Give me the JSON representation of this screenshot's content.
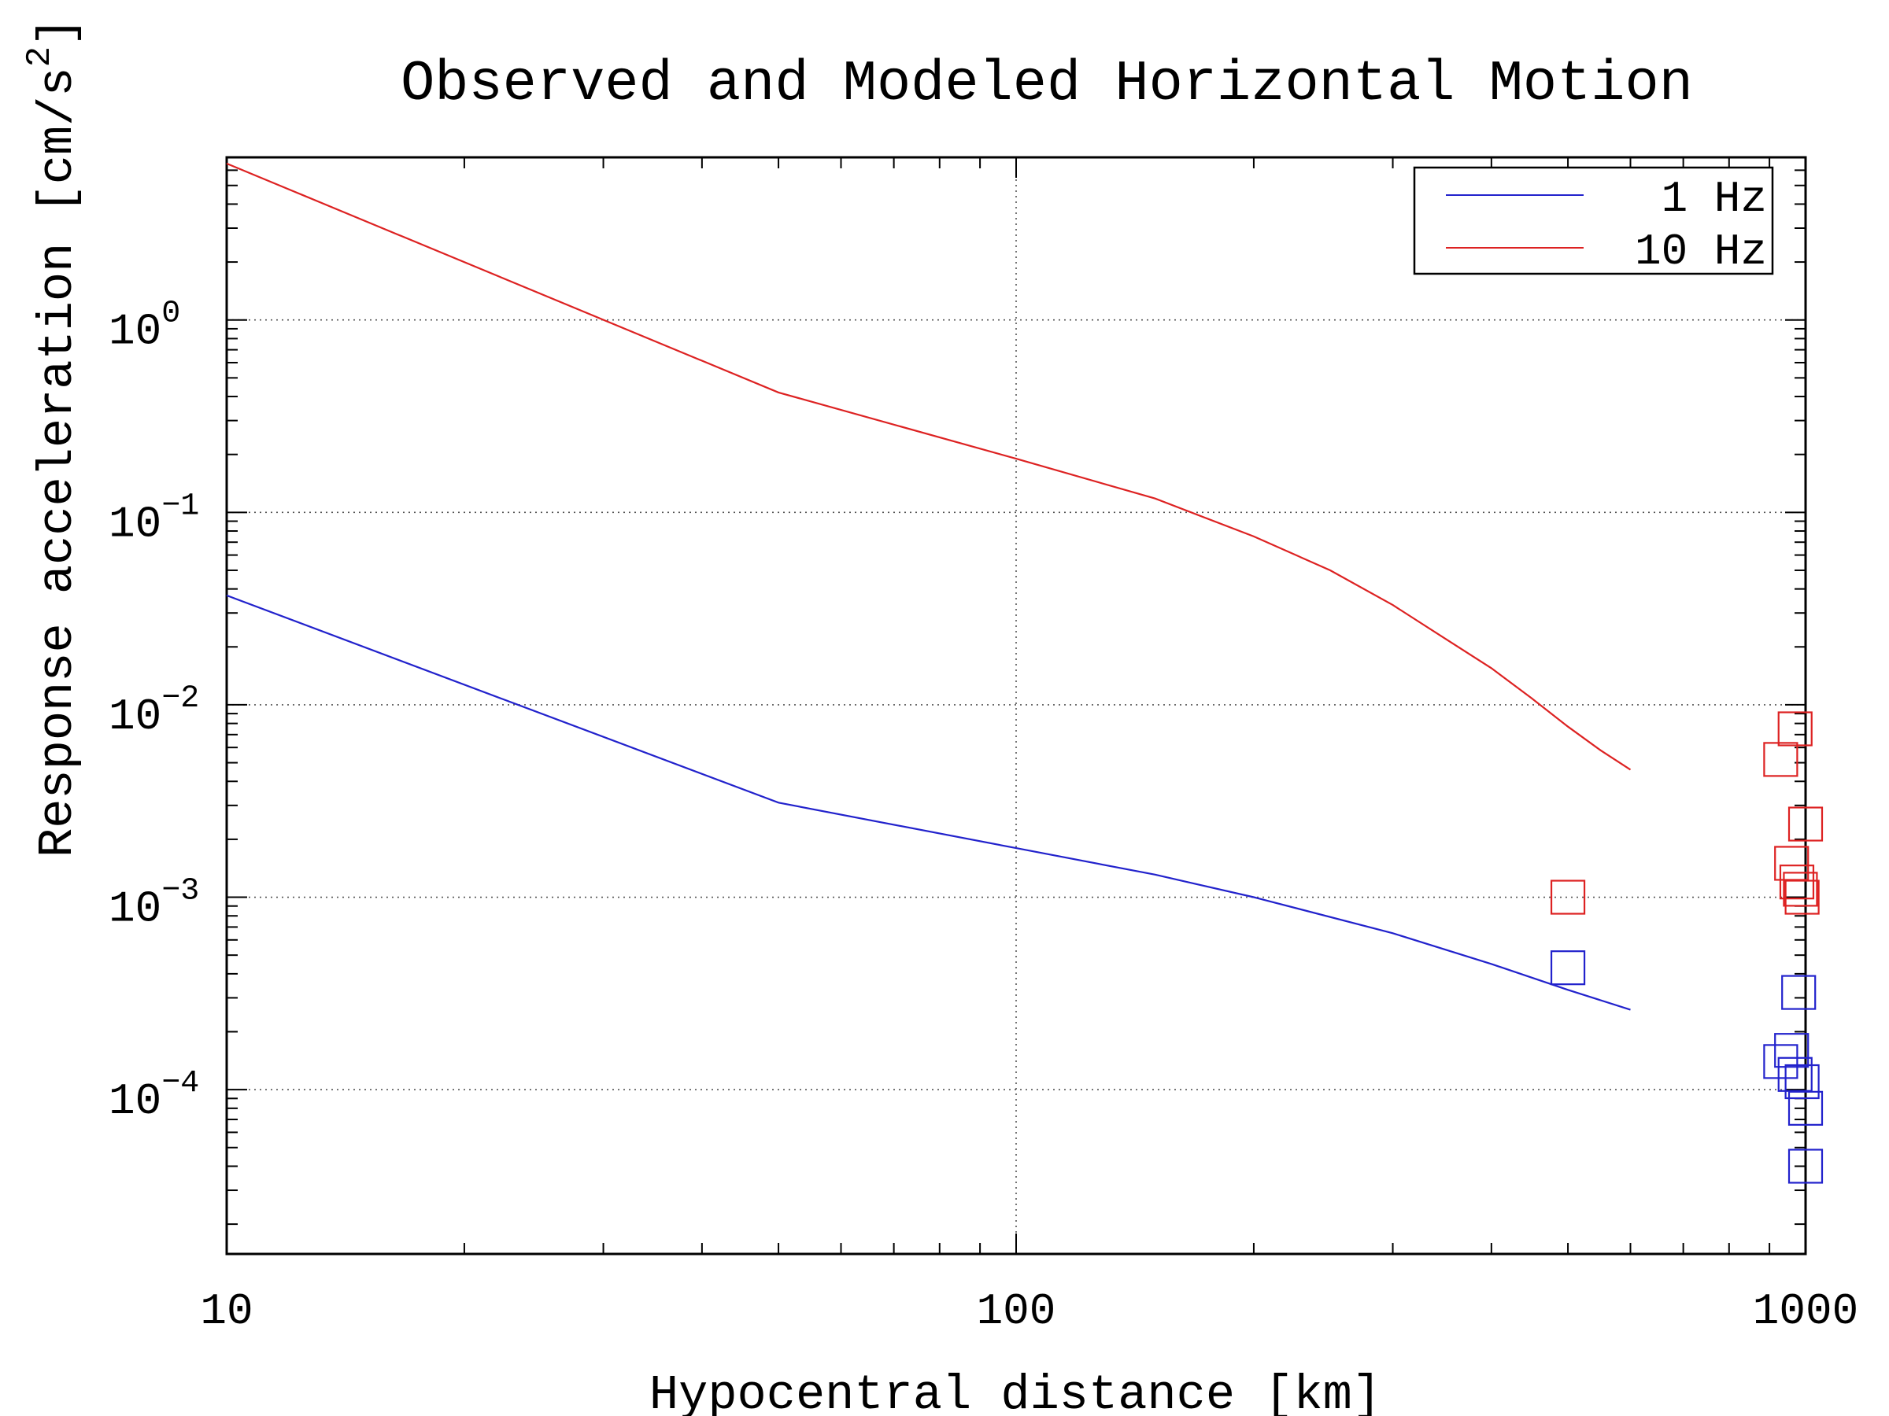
{
  "chart_data": {
    "type": "line",
    "title": "Observed and Modeled Horizontal Motion",
    "xlabel": "Hypocentral distance [km]",
    "ylabel": "Response acceleration [cm/s",
    "ylabel_superscript": "2",
    "ylabel_close": "]",
    "xscale": "log",
    "yscale": "log",
    "xlim": [
      10,
      1000
    ],
    "ylim": [
      1.4e-05,
      7
    ],
    "x_ticks": [
      {
        "value": 10,
        "label": "10"
      },
      {
        "value": 100,
        "label": "100"
      },
      {
        "value": 1000,
        "label": "1000"
      }
    ],
    "y_ticks": [
      {
        "value": 1,
        "base": "10",
        "exp": "0"
      },
      {
        "value": 0.1,
        "base": "10",
        "exp": "−1"
      },
      {
        "value": 0.01,
        "base": "10",
        "exp": "−2"
      },
      {
        "value": 0.001,
        "base": "10",
        "exp": "−3"
      },
      {
        "value": 0.0001,
        "base": "10",
        "exp": "−4"
      }
    ],
    "grid": true,
    "legend_position": "top-right",
    "series": [
      {
        "name": "1 Hz",
        "kind": "line",
        "color": "#2222cc",
        "x": [
          10,
          50,
          100,
          150,
          200,
          300,
          400,
          500,
          600
        ],
        "y": [
          0.037,
          0.0031,
          0.0018,
          0.00131,
          0.001,
          0.00065,
          0.00045,
          0.00033,
          0.00026
        ]
      },
      {
        "name": "10 Hz",
        "kind": "line",
        "color": "#dd2222",
        "x": [
          10,
          50,
          100,
          150,
          200,
          250,
          300,
          350,
          400,
          450,
          500,
          550,
          600
        ],
        "y": [
          6.5,
          0.42,
          0.19,
          0.118,
          0.075,
          0.05,
          0.033,
          0.022,
          0.0155,
          0.0108,
          0.0077,
          0.0058,
          0.0046
        ]
      },
      {
        "kind": "markers",
        "color": "#2222cc",
        "x": [
          500,
          930,
          960,
          970,
          980,
          990,
          1000,
          1000
        ],
        "y": [
          0.00043,
          0.00014,
          0.00016,
          0.00012,
          0.00032,
          0.00011,
          8e-05,
          4e-05
        ]
      },
      {
        "kind": "markers",
        "color": "#dd2222",
        "x": [
          500,
          930,
          970,
          960,
          975,
          985,
          990,
          1000
        ],
        "y": [
          0.001,
          0.0052,
          0.0075,
          0.0015,
          0.0012,
          0.0011,
          0.001,
          0.0024
        ]
      }
    ]
  }
}
